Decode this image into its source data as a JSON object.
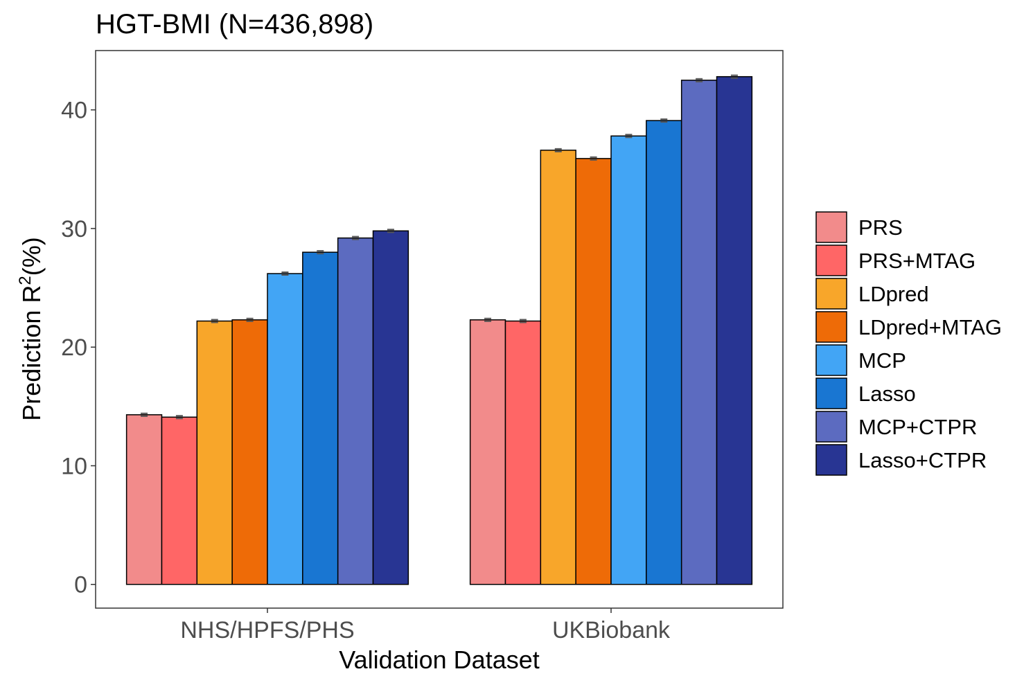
{
  "chart_data": {
    "type": "bar",
    "title": "HGT-BMI (N=436,898)",
    "xlabel": "Validation Dataset",
    "ylabel_main": "Prediction R",
    "ylabel_sup": "2",
    "ylabel_tail": "(%)",
    "categories": [
      "NHS/HPFS/PHS",
      "UKBiobank"
    ],
    "ylim": [
      -2,
      45
    ],
    "yticks": [
      0,
      10,
      20,
      30,
      40
    ],
    "grid": false,
    "legend_position": "right",
    "series": [
      {
        "name": "PRS",
        "color": "#F28B8B",
        "values": [
          14.3,
          22.3
        ]
      },
      {
        "name": "PRS+MTAG",
        "color": "#FF6666",
        "values": [
          14.1,
          22.2
        ]
      },
      {
        "name": "LDpred",
        "color": "#F8A62A",
        "values": [
          22.2,
          36.6
        ]
      },
      {
        "name": "LDpred+MTAG",
        "color": "#EE6B07",
        "values": [
          22.3,
          35.9
        ]
      },
      {
        "name": "MCP",
        "color": "#42A5F5",
        "values": [
          26.2,
          37.8
        ]
      },
      {
        "name": "Lasso",
        "color": "#1976D2",
        "values": [
          28.0,
          39.1
        ]
      },
      {
        "name": "MCP+CTPR",
        "color": "#5C6BC0",
        "values": [
          29.2,
          42.5
        ]
      },
      {
        "name": "Lasso+CTPR",
        "color": "#283593",
        "values": [
          29.8,
          42.8
        ]
      }
    ]
  }
}
